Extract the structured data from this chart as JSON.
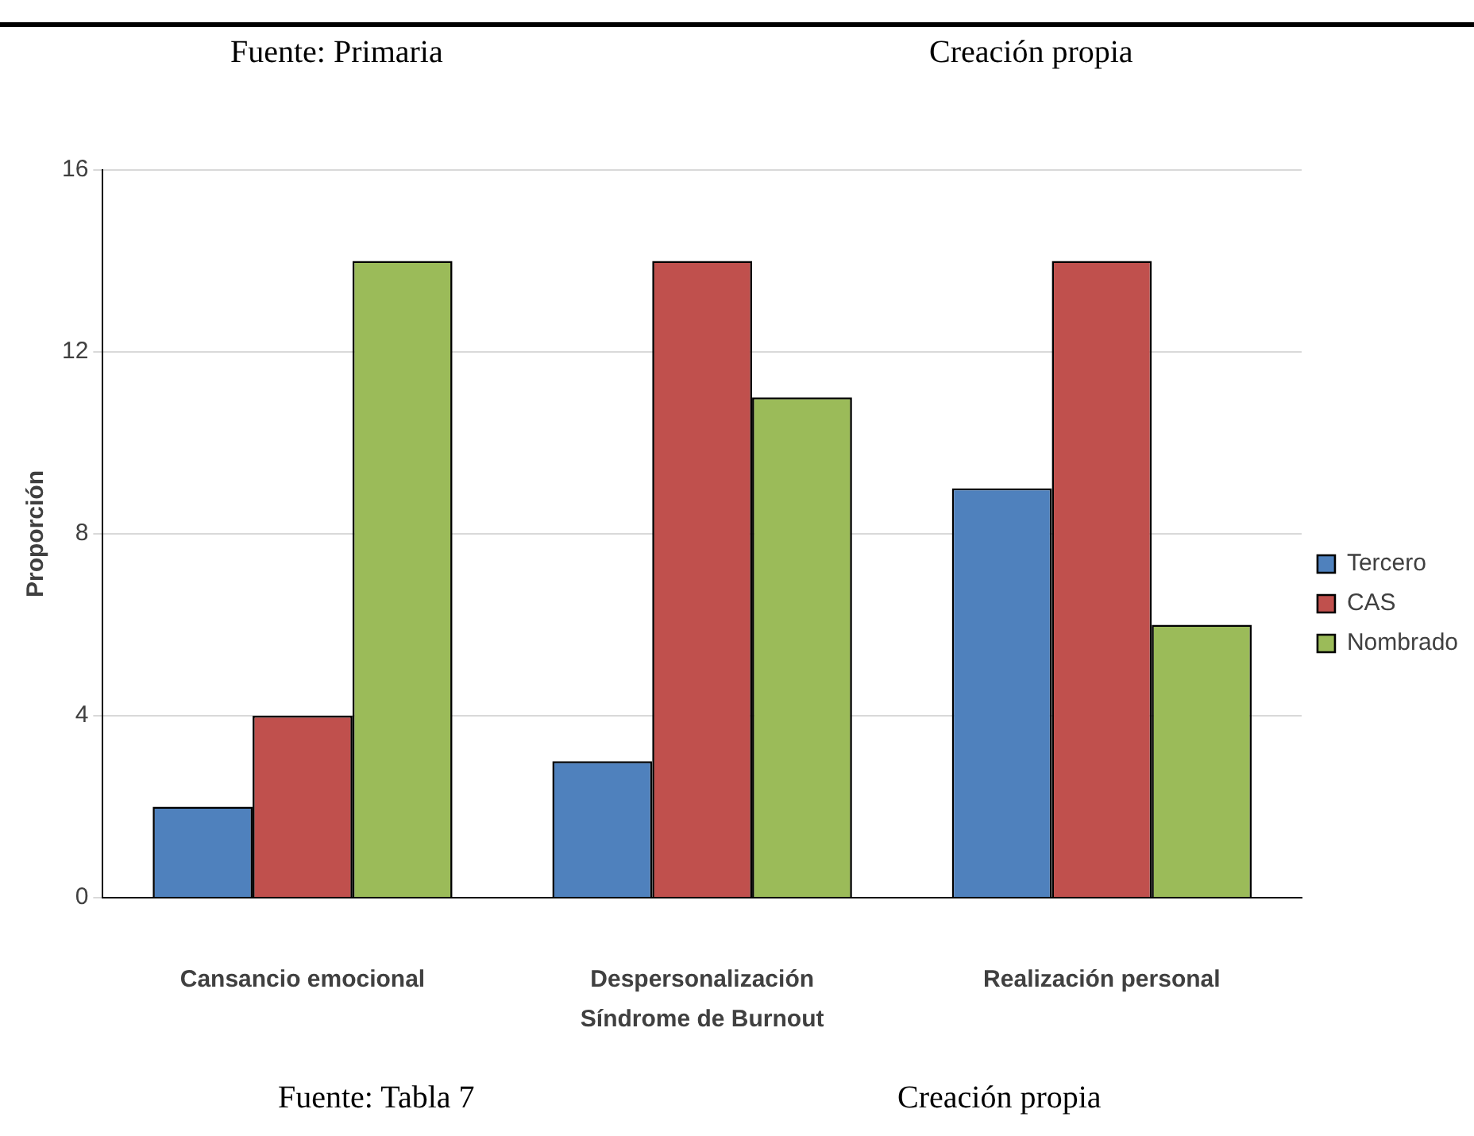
{
  "chart_data": {
    "type": "bar",
    "categories": [
      "Cansancio emocional",
      "Despersonalización",
      "Realización personal"
    ],
    "series": [
      {
        "name": "Tercero",
        "color": "#4f81bd",
        "values": [
          2,
          3,
          9
        ]
      },
      {
        "name": "CAS",
        "color": "#c0504d",
        "values": [
          4,
          14,
          14
        ]
      },
      {
        "name": "Nombrado",
        "color": "#9bbb59",
        "values": [
          14,
          11,
          6
        ]
      }
    ],
    "xlabel": "Síndrome de Burnout",
    "ylabel": "Proporción",
    "ylim": [
      0,
      16
    ],
    "yticks": [
      0,
      4,
      8,
      12,
      16
    ],
    "grid": "y",
    "legend": "right",
    "annotations": [
      "Fuente: Primaria",
      "Creación propia",
      "Fuente: Tabla 7",
      "Creación propia"
    ]
  }
}
